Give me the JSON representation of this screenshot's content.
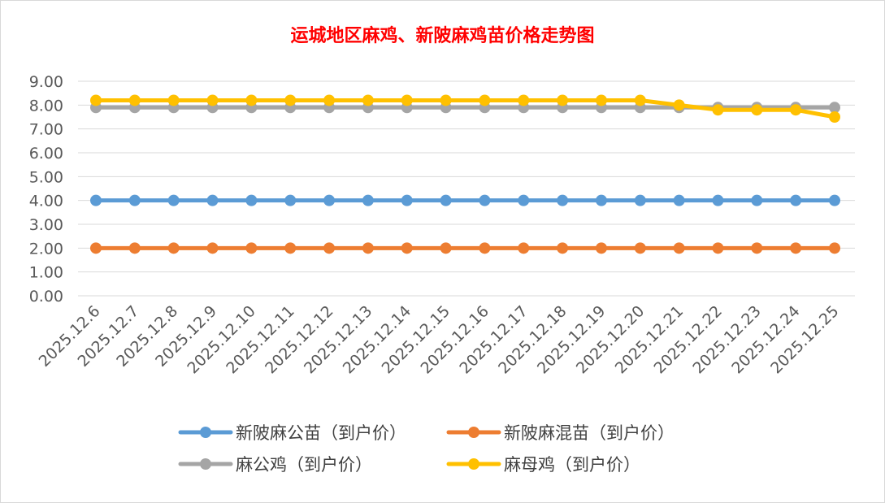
{
  "chart_data": {
    "type": "line",
    "title": "运城地区麻鸡、新陂麻鸡苗价格走势图",
    "xlabel": "",
    "ylabel": "",
    "ylim": [
      0,
      9
    ],
    "yticks": [
      "0.00",
      "1.00",
      "2.00",
      "3.00",
      "4.00",
      "5.00",
      "6.00",
      "7.00",
      "8.00",
      "9.00"
    ],
    "grid": true,
    "legend_position": "bottom",
    "categories": [
      "2025.12.6",
      "2025.12.7",
      "2025.12.8",
      "2025.12.9",
      "2025.12.10",
      "2025.12.11",
      "2025.12.12",
      "2025.12.13",
      "2025.12.14",
      "2025.12.15",
      "2025.12.16",
      "2025.12.17",
      "2025.12.18",
      "2025.12.19",
      "2025.12.20",
      "2025.12.21",
      "2025.12.22",
      "2025.12.23",
      "2025.12.24",
      "2025.12.25"
    ],
    "series": [
      {
        "name": "新陂麻公苗（到户价）",
        "color": "#5b9bd5",
        "values": [
          4,
          4,
          4,
          4,
          4,
          4,
          4,
          4,
          4,
          4,
          4,
          4,
          4,
          4,
          4,
          4,
          4,
          4,
          4,
          4
        ]
      },
      {
        "name": "新陂麻混苗（到户价）",
        "color": "#ed7d31",
        "values": [
          2,
          2,
          2,
          2,
          2,
          2,
          2,
          2,
          2,
          2,
          2,
          2,
          2,
          2,
          2,
          2,
          2,
          2,
          2,
          2
        ]
      },
      {
        "name": "麻公鸡（到户价）",
        "color": "#a5a5a5",
        "values": [
          7.9,
          7.9,
          7.9,
          7.9,
          7.9,
          7.9,
          7.9,
          7.9,
          7.9,
          7.9,
          7.9,
          7.9,
          7.9,
          7.9,
          7.9,
          7.9,
          7.9,
          7.9,
          7.9,
          7.9
        ]
      },
      {
        "name": "麻母鸡（到户价）",
        "color": "#ffc000",
        "values": [
          8.2,
          8.2,
          8.2,
          8.2,
          8.2,
          8.2,
          8.2,
          8.2,
          8.2,
          8.2,
          8.2,
          8.2,
          8.2,
          8.2,
          8.2,
          8.0,
          7.8,
          7.8,
          7.8,
          7.5
        ]
      }
    ]
  }
}
